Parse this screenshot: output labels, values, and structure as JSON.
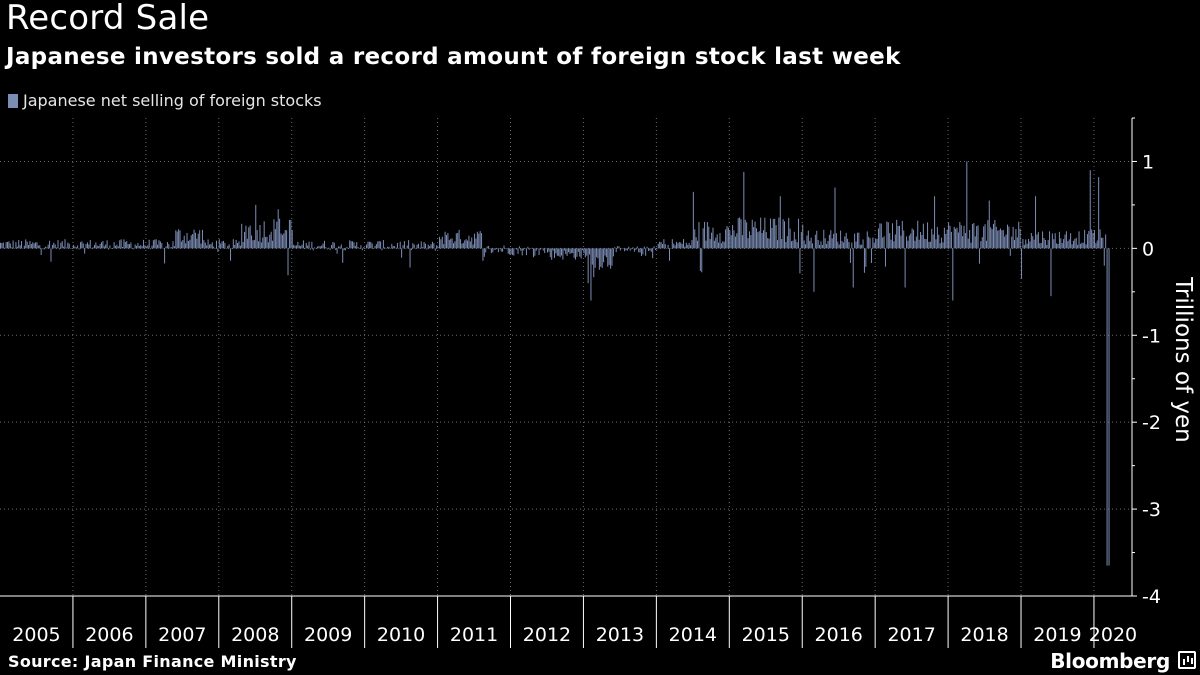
{
  "header": {
    "title": "Record Sale",
    "subtitle": "Japanese investors sold a record amount of foreign stock last week"
  },
  "legend": {
    "label": "Japanese net selling of foreign stocks"
  },
  "footer": {
    "source": "Source: Japan Finance Ministry",
    "brand": "Bloomberg"
  },
  "colors": {
    "bar": "#7c8db5",
    "background": "#000000",
    "grid": "#6a6a6a",
    "text": "#ffffff"
  },
  "chart_data": {
    "type": "bar",
    "ylabel": "Trillions of yen",
    "ylim": [
      -4,
      1.5
    ],
    "yticks": [
      1,
      0,
      -1,
      -2,
      -3,
      -4
    ],
    "grid": true,
    "legend_position": "top-left",
    "x_categories": [
      "2005",
      "2006",
      "2007",
      "2008",
      "2009",
      "2010",
      "2011",
      "2012",
      "2013",
      "2014",
      "2015",
      "2016",
      "2017",
      "2018",
      "2019",
      "2020"
    ],
    "x_start_year": 2005,
    "x_end_year": 2020.22,
    "weekly": {
      "start": "2005-01",
      "end": "2020-03",
      "highlights": [
        {
          "date": 2008.5,
          "value": 0.5
        },
        {
          "date": 2008.8,
          "value": 0.45
        },
        {
          "date": 2013.1,
          "value": -0.6
        },
        {
          "date": 2013.05,
          "value": -0.4
        },
        {
          "date": 2015.2,
          "value": 0.88
        },
        {
          "date": 2015.7,
          "value": 0.6
        },
        {
          "date": 2014.5,
          "value": 0.65
        },
        {
          "date": 2016.15,
          "value": -0.5
        },
        {
          "date": 2016.45,
          "value": 0.7
        },
        {
          "date": 2016.7,
          "value": -0.45
        },
        {
          "date": 2017.4,
          "value": -0.45
        },
        {
          "date": 2017.8,
          "value": 0.6
        },
        {
          "date": 2018.05,
          "value": -0.6
        },
        {
          "date": 2018.25,
          "value": 1.0
        },
        {
          "date": 2018.55,
          "value": 0.55
        },
        {
          "date": 2019.2,
          "value": 0.6
        },
        {
          "date": 2019.4,
          "value": -0.55
        },
        {
          "date": 2019.0,
          "value": -0.35
        },
        {
          "date": 2019.95,
          "value": 0.9
        },
        {
          "date": 2020.05,
          "value": 0.82
        },
        {
          "date": 2020.13,
          "value": -0.2
        },
        {
          "date": 2020.2,
          "value": -3.65
        }
      ]
    }
  }
}
